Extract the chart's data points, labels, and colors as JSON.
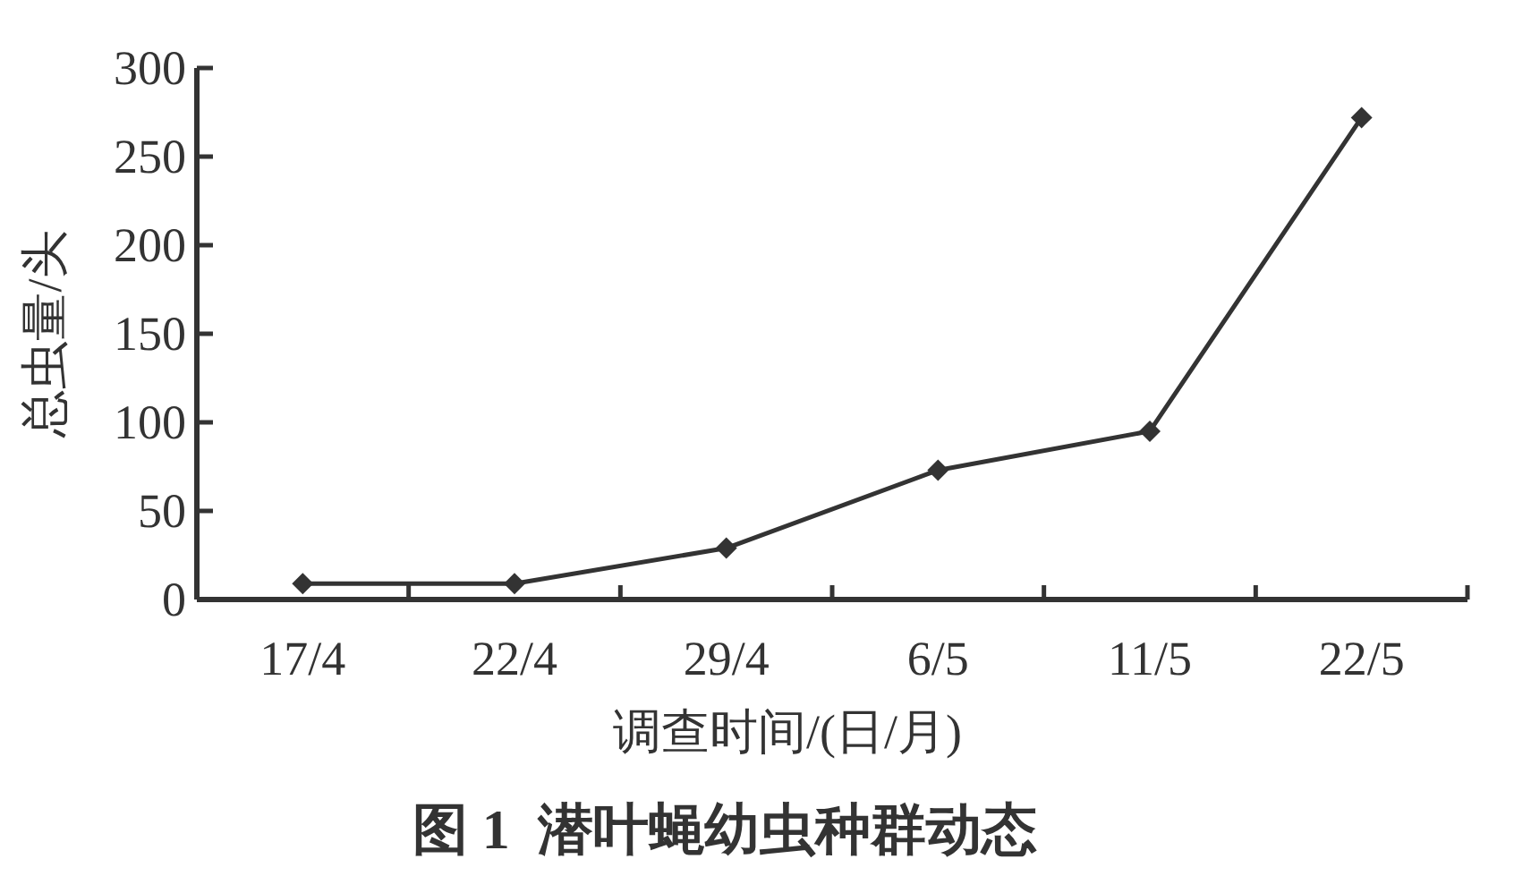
{
  "chart_data": {
    "type": "line",
    "title": "图 1  潜叶蝇幼虫种群动态",
    "xlabel": "调查时间/(日/月)",
    "ylabel": "总虫量/头",
    "categories": [
      "17/4",
      "22/4",
      "29/4",
      "6/5",
      "11/5",
      "22/5"
    ],
    "series": [
      {
        "color": "#333333",
        "values": [
          9,
          9,
          29,
          73,
          95,
          272
        ]
      }
    ],
    "ylim": [
      0,
      300
    ],
    "yticks": [
      0,
      50,
      100,
      150,
      200,
      250,
      300
    ],
    "marker": "diamond",
    "line_style": "solid",
    "grid": false
  }
}
